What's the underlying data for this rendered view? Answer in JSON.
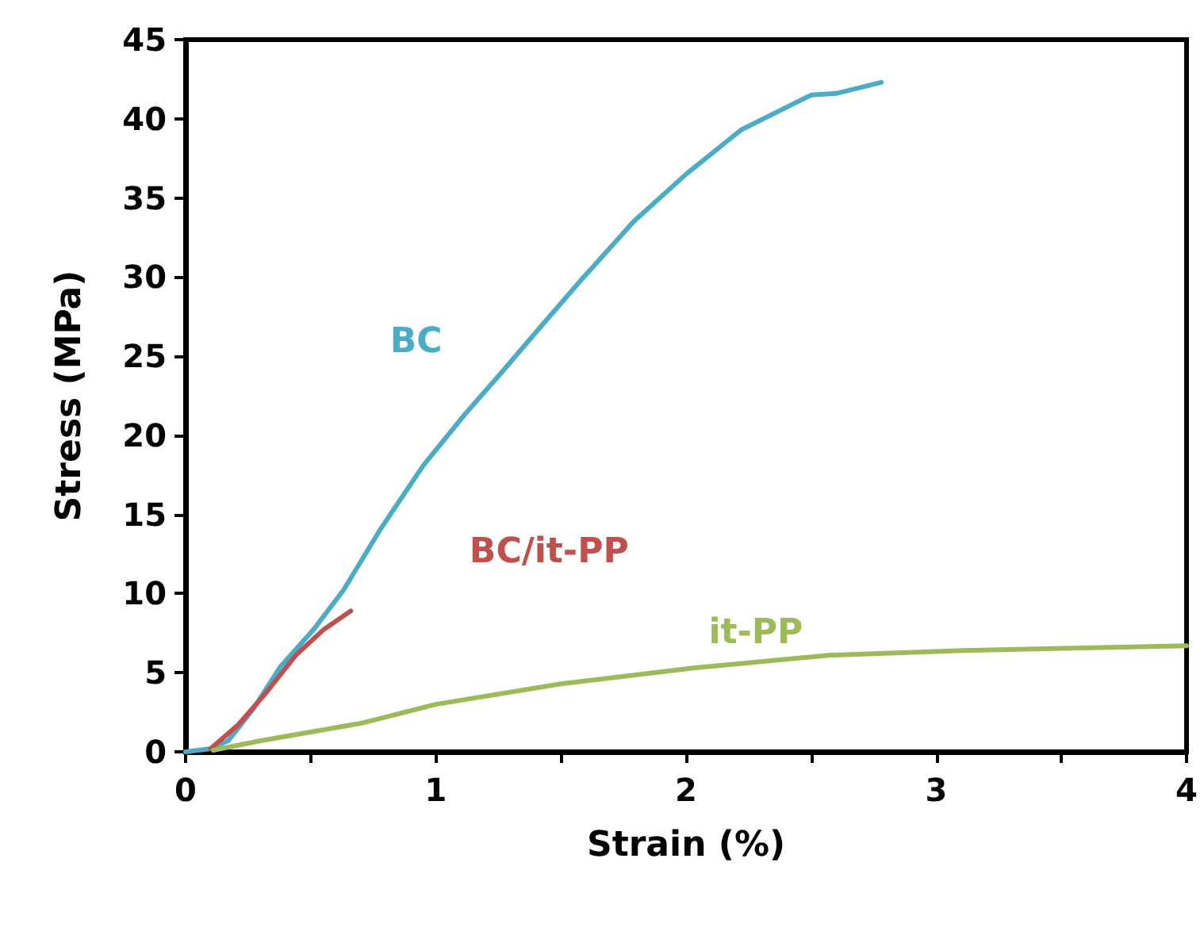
{
  "chart_data": {
    "type": "line",
    "xlabel": "Strain (%)",
    "ylabel": "Stress (MPa)",
    "xlim": [
      0,
      4
    ],
    "ylim": [
      0,
      45
    ],
    "xticks": [
      0,
      {
        "value": 0.5,
        "label": null
      },
      1,
      {
        "value": 1.5,
        "label": null
      },
      2,
      {
        "value": 2.5,
        "label": null
      },
      3,
      {
        "value": 3.5,
        "label": null
      },
      4
    ],
    "yticks": [
      0,
      5,
      10,
      15,
      20,
      25,
      30,
      35,
      40,
      45
    ],
    "grid": false,
    "legend": false,
    "marker": "none",
    "line_style": "solid",
    "series": [
      {
        "name": "BC",
        "color": "#4bacc6",
        "x": [
          0,
          0.1,
          0.17,
          0.27,
          0.38,
          0.51,
          0.63,
          0.78,
          0.95,
          1.12,
          1.27,
          1.41,
          1.58,
          1.79,
          2.0,
          2.22,
          2.41,
          2.5,
          2.6,
          2.78
        ],
        "values": [
          0,
          0.2,
          0.7,
          2.7,
          5.4,
          7.7,
          10.2,
          14.1,
          18.1,
          21.4,
          24.1,
          26.7,
          29.8,
          33.5,
          36.5,
          39.3,
          40.8,
          41.5,
          41.6,
          42.3
        ]
      },
      {
        "name": "BC/it-PP",
        "color": "#c0504d",
        "x": [
          0.1,
          0.21,
          0.32,
          0.44,
          0.55,
          0.66
        ],
        "values": [
          0.2,
          1.7,
          3.7,
          6.1,
          7.7,
          8.9
        ]
      },
      {
        "name": "it-PP",
        "color": "#9bbb59",
        "x": [
          0.11,
          0.3,
          0.7,
          1.0,
          1.5,
          2.03,
          2.57,
          3.11,
          4.0
        ],
        "values": [
          0.1,
          0.7,
          1.8,
          3.0,
          4.3,
          5.3,
          6.1,
          6.4,
          6.7
        ]
      }
    ]
  }
}
